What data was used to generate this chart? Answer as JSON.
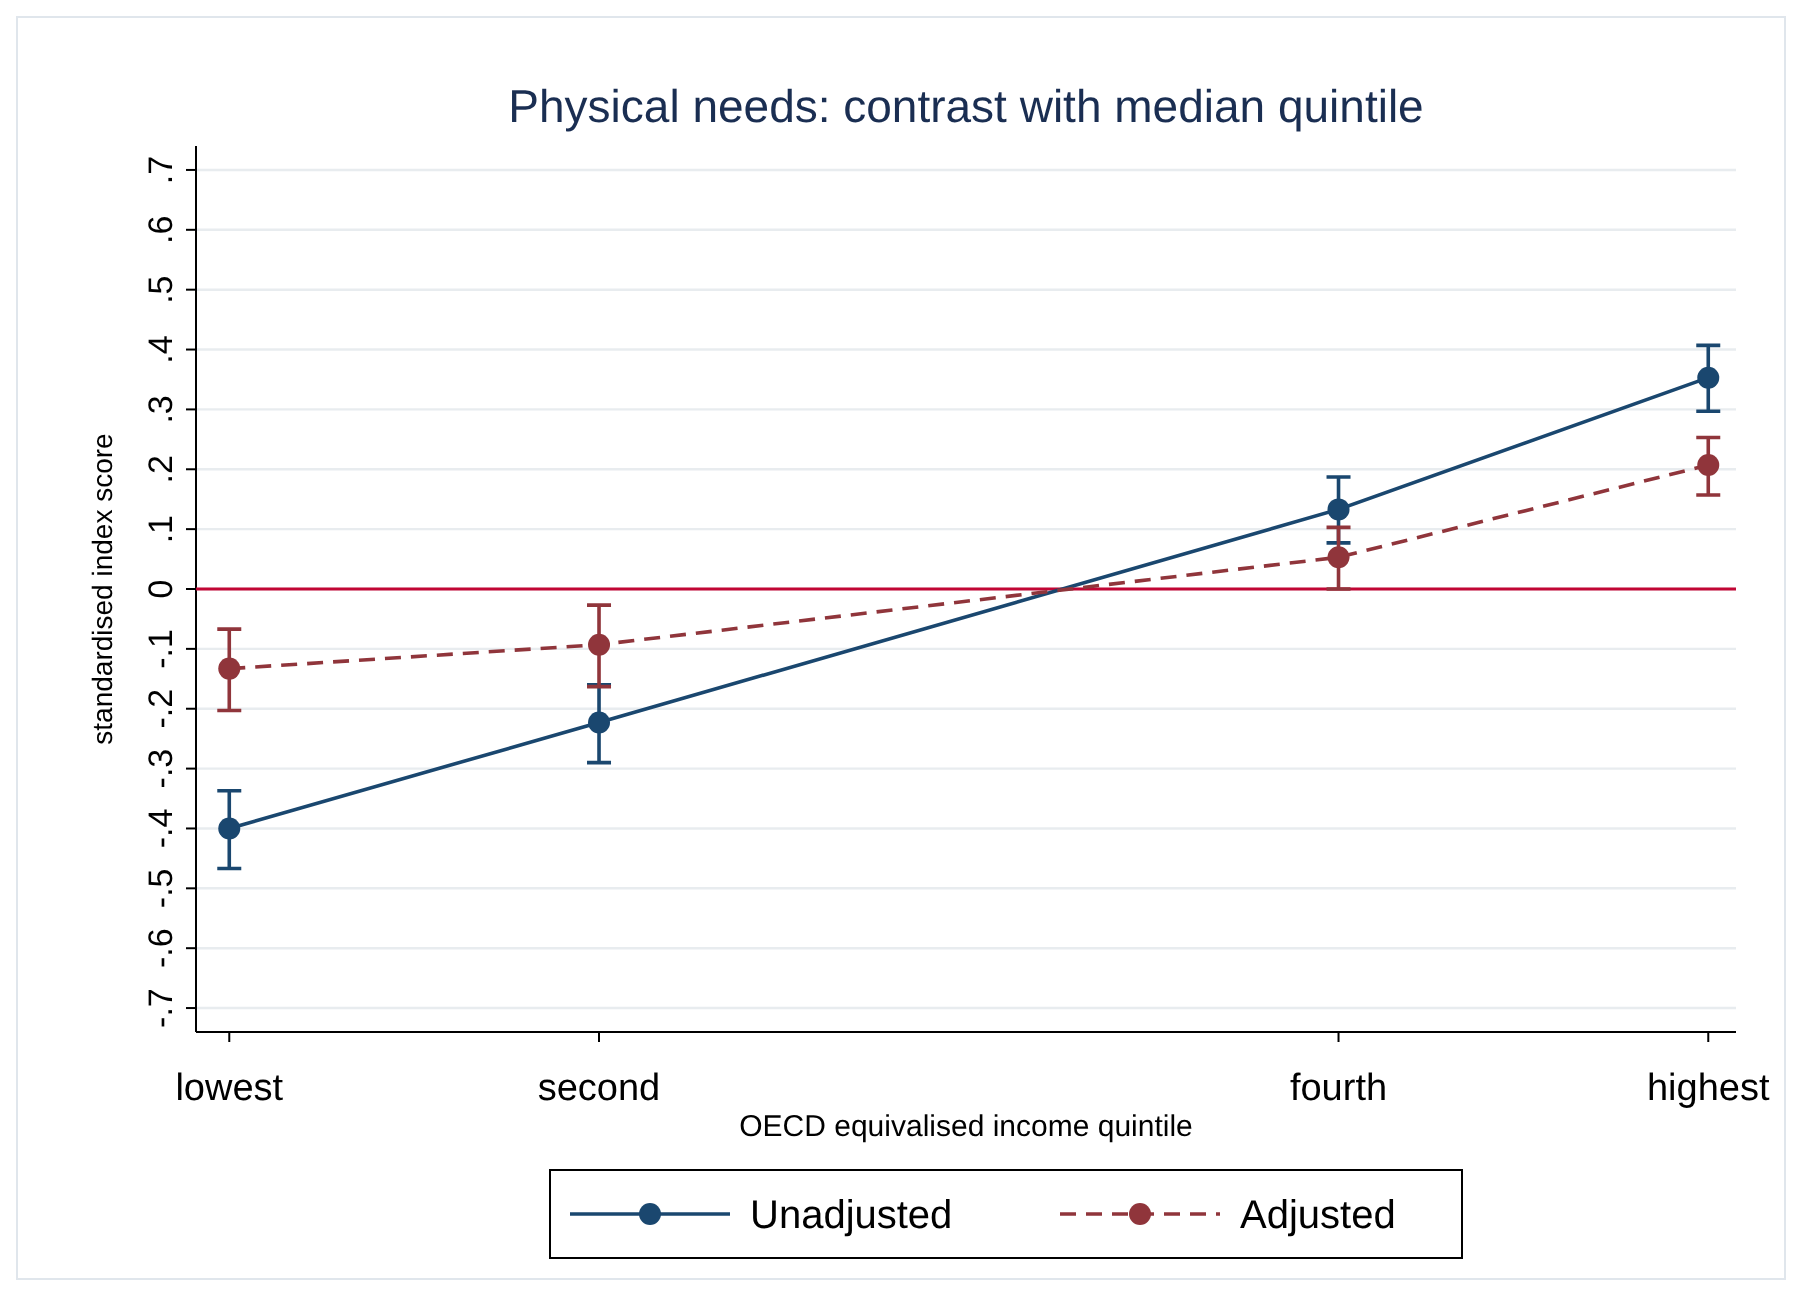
{
  "chart_data": {
    "type": "line",
    "title": "Physical needs: contrast with median quintile",
    "xlabel": "OECD equivalised income quintile",
    "ylabel": "standardised index score",
    "categories": [
      "lowest",
      "second",
      null,
      "fourth",
      "highest"
    ],
    "ylim": [
      -0.74,
      0.74
    ],
    "yticks": [
      {
        "value": -0.7,
        "label": "-.7"
      },
      {
        "value": -0.6,
        "label": "-.6"
      },
      {
        "value": -0.5,
        "label": "-.5"
      },
      {
        "value": -0.4,
        "label": "-.4"
      },
      {
        "value": -0.3,
        "label": "-.3"
      },
      {
        "value": -0.2,
        "label": "-.2"
      },
      {
        "value": -0.1,
        "label": "-.1"
      },
      0,
      {
        "value": 0.1,
        "label": ".1"
      },
      {
        "value": 0.2,
        "label": ".2"
      },
      {
        "value": 0.3,
        "label": ".3"
      },
      {
        "value": 0.4,
        "label": ".4"
      },
      {
        "value": 0.5,
        "label": ".5"
      },
      {
        "value": 0.6,
        "label": ".6"
      },
      {
        "value": 0.7,
        "label": ".7"
      }
    ],
    "grid": "y",
    "legend": "bottom",
    "marker": "circle",
    "ref_lines": [
      {
        "axis": "y",
        "value": 0,
        "color": "#c10534"
      }
    ],
    "series": [
      {
        "name": "Unadjusted",
        "color": "#1a476f",
        "line_style": "solid",
        "values": [
          -0.4,
          -0.223,
          null,
          0.133,
          0.353
        ],
        "errors": [
          [
            -0.467,
            -0.337
          ],
          [
            -0.29,
            -0.16
          ],
          null,
          [
            0.077,
            0.187
          ],
          [
            0.297,
            0.407
          ]
        ]
      },
      {
        "name": "Adjusted",
        "color": "#90353b",
        "line_style": "dashed",
        "values": [
          -0.133,
          -0.093,
          null,
          0.053,
          0.207
        ],
        "errors": [
          [
            -0.203,
            -0.067
          ],
          [
            -0.163,
            -0.027
          ],
          null,
          [
            0.0,
            0.103
          ],
          [
            0.157,
            0.253
          ]
        ]
      }
    ]
  }
}
